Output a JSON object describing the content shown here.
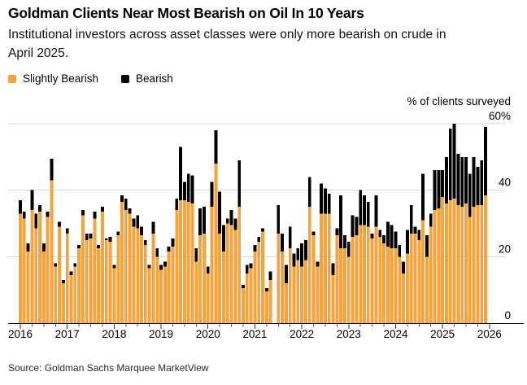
{
  "title": "Goldman Clients Near Most Bearish on Oil In 10 Years",
  "subtitle": "Institutional investors across asset classes were only more bearish on crude in April 2025.",
  "legend": [
    {
      "label": "Slightly Bearish",
      "color": "#F8A23B"
    },
    {
      "label": "Bearish",
      "color": "#000000"
    }
  ],
  "source": "Source: Goldman Sachs Marquee MarketView",
  "colors": {
    "slightly_bearish": "#F8A23B",
    "bearish": "#000000",
    "gridline": "#D9D9D9",
    "axis_line": "#000000",
    "text": "#000000"
  },
  "chart_data": {
    "type": "bar",
    "stacked": true,
    "title": "Goldman Clients Near Most Bearish on Oil In 10 Years",
    "subtitle": "Institutional investors across asset classes were only more bearish on crude in April 2025.",
    "unit_label": "% of clients surveyed",
    "ylabel": "% of clients surveyed",
    "xlabel": "",
    "ylim": [
      0,
      60
    ],
    "grid": true,
    "y_axis_side": "right",
    "legend_position": "top-left",
    "y_ticks": [
      {
        "value": 0,
        "label": "0"
      },
      {
        "value": 20,
        "label": "20"
      },
      {
        "value": 40,
        "label": "40"
      },
      {
        "value": 60,
        "label": "60%"
      }
    ],
    "x_year_ticks": [
      2016,
      2017,
      2018,
      2019,
      2020,
      2021,
      2022,
      2023,
      2024,
      2025,
      2026
    ],
    "frequency": "monthly",
    "gap_months": [
      "2021-06"
    ],
    "months": [
      "2016-01",
      "2016-02",
      "2016-03",
      "2016-04",
      "2016-05",
      "2016-06",
      "2016-07",
      "2016-08",
      "2016-09",
      "2016-10",
      "2016-11",
      "2016-12",
      "2017-01",
      "2017-02",
      "2017-03",
      "2017-04",
      "2017-05",
      "2017-06",
      "2017-07",
      "2017-08",
      "2017-09",
      "2017-10",
      "2017-11",
      "2017-12",
      "2018-01",
      "2018-02",
      "2018-03",
      "2018-04",
      "2018-05",
      "2018-06",
      "2018-07",
      "2018-08",
      "2018-09",
      "2018-10",
      "2018-11",
      "2018-12",
      "2019-01",
      "2019-02",
      "2019-03",
      "2019-04",
      "2019-05",
      "2019-06",
      "2019-07",
      "2019-08",
      "2019-09",
      "2019-10",
      "2019-11",
      "2019-12",
      "2020-01",
      "2020-02",
      "2020-03",
      "2020-04",
      "2020-05",
      "2020-06",
      "2020-07",
      "2020-08",
      "2020-09",
      "2020-10",
      "2020-11",
      "2020-12",
      "2021-01",
      "2021-02",
      "2021-03",
      "2021-04",
      "2021-05",
      "2021-06",
      "2021-07",
      "2021-08",
      "2021-09",
      "2021-10",
      "2021-11",
      "2021-12",
      "2022-01",
      "2022-02",
      "2022-03",
      "2022-04",
      "2022-05",
      "2022-06",
      "2022-07",
      "2022-08",
      "2022-09",
      "2022-10",
      "2022-11",
      "2022-12",
      "2023-01",
      "2023-02",
      "2023-03",
      "2023-04",
      "2023-05",
      "2023-06",
      "2023-07",
      "2023-08",
      "2023-09",
      "2023-10",
      "2023-11",
      "2023-12",
      "2024-01",
      "2024-02",
      "2024-03",
      "2024-04",
      "2024-05",
      "2024-06",
      "2024-07",
      "2024-08",
      "2024-09",
      "2024-10",
      "2024-11",
      "2024-12",
      "2025-01",
      "2025-02",
      "2025-03",
      "2025-04",
      "2025-05",
      "2025-06",
      "2025-07",
      "2025-08",
      "2025-09",
      "2025-10",
      "2025-11",
      "2025-12"
    ],
    "series": [
      {
        "name": "Slightly Bearish",
        "color": "#F8A23B",
        "values": [
          33,
          31.5,
          21.5,
          34,
          28.5,
          33.5,
          21.5,
          32,
          43,
          17,
          29,
          12,
          27,
          14.5,
          17,
          22.5,
          32.5,
          25,
          25.5,
          31.5,
          22.5,
          33.5,
          25,
          24.5,
          16.5,
          26.5,
          36.5,
          34,
          33,
          29,
          28.5,
          26.5,
          23.5,
          16.5,
          27,
          20,
          16,
          17,
          21.5,
          23,
          34,
          37,
          37,
          36.5,
          36,
          18.5,
          26.5,
          27,
          15,
          35,
          48,
          27,
          21.5,
          30,
          29.5,
          28,
          35,
          10.5,
          15,
          16.5,
          21.5,
          24.5,
          27.5,
          9.5,
          13,
          null,
          27,
          21.5,
          12,
          22.5,
          17,
          19,
          17,
          19,
          35,
          26.5,
          17,
          33,
          33,
          33,
          14.5,
          26.5,
          22.5,
          22.5,
          20,
          26,
          26.5,
          29.5,
          29.5,
          29,
          25.5,
          29,
          26,
          24,
          23,
          22.5,
          22.5,
          20,
          15,
          21,
          27,
          27,
          25,
          31,
          20,
          29,
          34,
          34.5,
          38,
          36,
          37,
          37.5,
          35.5,
          35,
          36,
          32,
          35,
          35.5,
          35.5,
          38.5
        ]
      },
      {
        "name": "Bearish",
        "color": "#000000",
        "values": [
          4,
          2,
          2.5,
          6,
          4.5,
          2,
          2.5,
          1.5,
          6.5,
          1,
          1.5,
          1,
          1.5,
          1,
          1,
          1,
          1.5,
          2,
          1.5,
          2,
          1,
          1.5,
          0.5,
          1.5,
          1,
          1,
          2,
          3.5,
          1.5,
          2.5,
          4,
          2.5,
          1.5,
          1,
          3.5,
          2.5,
          1.5,
          1.5,
          1.5,
          2.5,
          3.5,
          16,
          5.5,
          8.5,
          8.5,
          4,
          8,
          8,
          2,
          7.5,
          10,
          12.5,
          8,
          1.5,
          4.5,
          3.5,
          14,
          1,
          2.5,
          1.5,
          2,
          1.5,
          1,
          1,
          2.5,
          null,
          8.5,
          5.5,
          5.5,
          6.5,
          4,
          3.5,
          7,
          6,
          9,
          1,
          1.5,
          9,
          7.5,
          6,
          3.5,
          2,
          16,
          4,
          4.5,
          6.5,
          5.5,
          10.5,
          9,
          7.5,
          1.5,
          9.5,
          2,
          2.5,
          7.5,
          7,
          5,
          3.5,
          3.5,
          7,
          8.5,
          2,
          3,
          14,
          6.5,
          4,
          12,
          11.5,
          8,
          14,
          21.5,
          22.5,
          15.5,
          15,
          14,
          13,
          15,
          11.5,
          13.5,
          20.5
        ]
      }
    ]
  }
}
